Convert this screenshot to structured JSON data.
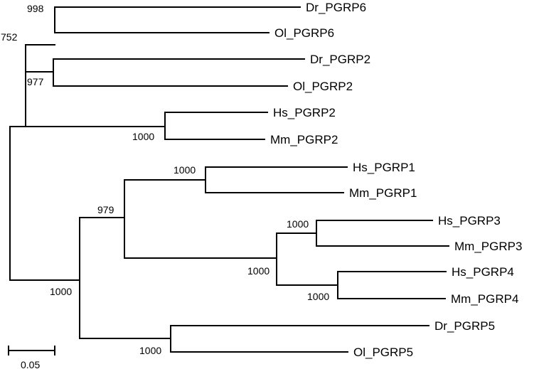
{
  "taxa": {
    "dr_pgrp6": "Dr_PGRP6",
    "ol_pgrp6": "Ol_PGRP6",
    "dr_pgrp2": "Dr_PGRP2",
    "ol_pgrp2": "Ol_PGRP2",
    "hs_pgrp2": "Hs_PGRP2",
    "mm_pgrp2": "Mm_PGRP2",
    "hs_pgrp1": "Hs_PGRP1",
    "mm_pgrp1": "Mm_PGRP1",
    "hs_pgrp3": "Hs_PGRP3",
    "mm_pgrp3": "Mm_PGRP3",
    "hs_pgrp4": "Hs_PGRP4",
    "mm_pgrp4": "Mm_PGRP4",
    "dr_pgrp5": "Dr_PGRP5",
    "ol_pgrp5": "Ol_PGRP5"
  },
  "bootstrap": {
    "pgrp6_clade": "998",
    "fish_clade": "752",
    "pgrp2_fish_clade": "977",
    "mammal_pgrp2_clade": "1000",
    "pgrp1_clade": "1000",
    "pgrp134_clade": "979",
    "pgrp3_clade": "1000",
    "pgrp34_clade": "1000",
    "pgrp4_clade": "1000",
    "pgrp1345_clade": "1000",
    "pgrp5_clade": "1000"
  },
  "scale_bar": {
    "label": "0.05"
  }
}
